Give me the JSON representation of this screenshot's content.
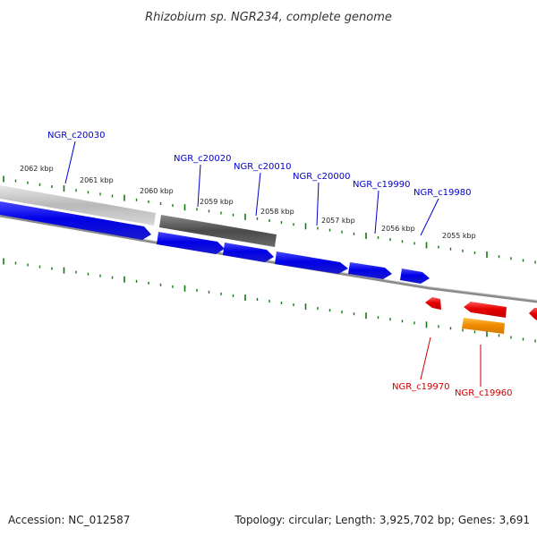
{
  "title": "Rhizobium sp. NGR234, complete genome",
  "footer": {
    "accession": "Accession: NC_012587",
    "summary": "Topology: circular; Length: 3,925,702 bp; Genes: 3,691"
  },
  "colors": {
    "forward_gene": "#0000ee",
    "reverse_gene": "#ee0000",
    "reverse_gene_alt": "#ff9900",
    "forward_label": "#0000cc",
    "reverse_label": "#cc0000",
    "tick": "#117a11",
    "backbone": "#8a8a8a",
    "region_light": "#c8c8c8",
    "region_dark": "#5a5a5a"
  },
  "scale_ticks": [
    "2062 kbp",
    "2061 kbp",
    "2060 kbp",
    "2059 kbp",
    "2058 kbp",
    "2057 kbp",
    "2056 kbp",
    "2055 kbp"
  ],
  "forward_genes": [
    "NGR_c20030",
    "NGR_c20020",
    "NGR_c20010",
    "NGR_c20000",
    "NGR_c19990",
    "NGR_c19980"
  ],
  "reverse_genes": [
    "NGR_c19970",
    "NGR_c19960"
  ]
}
